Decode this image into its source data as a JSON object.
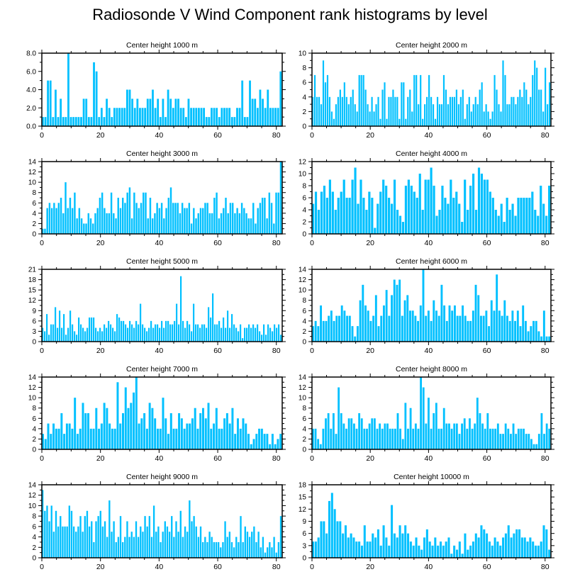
{
  "title": "Radiosonde V Wind Component rank histograms by level",
  "colors": {
    "bar": "#00c0ff",
    "axis": "#000000",
    "background": "#ffffff"
  },
  "chart_data": [
    {
      "type": "bar",
      "title": "Center height 1000 m",
      "xlim": [
        0,
        82
      ],
      "ylim": [
        0,
        8
      ],
      "xticks": [
        0,
        20,
        40,
        60,
        80
      ],
      "yticks": [
        0,
        2,
        4,
        6,
        8
      ],
      "ytick_labels": [
        "0.0",
        "2.0",
        "4.0",
        "6.0",
        "8.0"
      ],
      "values": [
        1,
        1,
        5,
        5,
        1,
        4,
        1,
        3,
        1,
        1,
        8,
        1,
        1,
        1,
        1,
        1,
        3,
        3,
        1,
        1,
        7,
        6,
        1,
        2,
        1,
        3,
        2,
        1,
        2,
        2,
        2,
        2,
        2,
        4,
        4,
        3,
        2,
        3,
        2,
        2,
        2,
        3,
        3,
        4,
        2,
        3,
        1,
        3,
        1,
        4,
        3,
        2,
        3,
        3,
        2,
        2,
        1,
        3,
        2,
        2,
        2,
        2,
        2,
        2,
        1,
        1,
        2,
        2,
        2,
        1,
        2,
        2,
        2,
        2,
        1,
        1,
        2,
        2,
        5,
        1,
        1,
        5,
        3,
        3,
        2,
        4,
        3,
        2,
        4,
        2,
        2,
        2,
        2,
        6
      ],
      "x_positions": "index"
    },
    {
      "type": "bar",
      "title": "Center height 2000 m",
      "xlim": [
        0,
        82
      ],
      "ylim": [
        0,
        10
      ],
      "xticks": [
        0,
        20,
        40,
        60,
        80
      ],
      "yticks": [
        0,
        2,
        4,
        6,
        8,
        10
      ],
      "values": [
        4,
        7,
        4,
        4,
        3,
        9,
        6,
        7,
        4,
        2,
        1,
        3,
        4,
        5,
        4,
        6,
        4,
        3,
        4,
        5,
        3,
        2,
        7,
        7,
        7,
        5,
        3,
        2,
        4,
        2,
        3,
        4,
        1,
        5,
        6,
        1,
        4,
        4,
        5,
        4,
        4,
        1,
        6,
        6,
        1,
        4,
        5,
        2,
        7,
        7,
        3,
        7,
        1,
        3,
        4,
        7,
        4,
        3,
        1,
        4,
        3,
        3,
        7,
        5,
        3,
        4,
        4,
        4,
        5,
        3,
        4,
        5,
        1,
        3,
        4,
        2,
        3,
        4,
        3,
        5,
        6,
        2,
        3,
        2,
        1,
        2,
        7,
        5,
        3,
        2,
        9,
        7,
        3,
        3,
        4,
        4,
        3,
        4,
        5,
        4,
        6,
        5,
        3,
        4,
        7,
        9,
        8,
        5,
        5,
        2,
        8,
        3,
        6
      ],
      "x_positions": "index"
    },
    {
      "type": "bar",
      "title": "Center height 3000 m",
      "xlim": [
        0,
        82
      ],
      "ylim": [
        0,
        14
      ],
      "xticks": [
        0,
        20,
        40,
        60,
        80
      ],
      "yticks": [
        0,
        2,
        4,
        6,
        8,
        10,
        12,
        14
      ],
      "values": [
        1,
        1,
        5,
        6,
        5,
        6,
        5,
        6,
        7,
        4,
        10,
        5,
        7,
        5,
        8,
        3,
        5,
        3,
        2,
        2,
        4,
        3,
        2,
        4,
        5,
        7,
        8,
        5,
        4,
        4,
        8,
        4,
        3,
        7,
        5,
        7,
        6,
        8,
        9,
        3,
        8,
        6,
        5,
        6,
        8,
        8,
        3,
        7,
        3,
        4,
        6,
        5,
        6,
        3,
        5,
        7,
        9,
        6,
        6,
        6,
        4,
        6,
        5,
        5,
        6,
        2,
        5,
        3,
        4,
        5,
        5,
        6,
        6,
        4,
        4,
        7,
        8,
        3,
        4,
        5,
        7,
        4,
        6,
        6,
        4,
        5,
        4,
        6,
        5,
        4,
        3,
        3,
        6,
        2,
        5,
        6,
        7,
        7,
        3,
        8,
        6,
        2,
        8,
        8,
        14
      ],
      "x_positions": "index"
    },
    {
      "type": "bar",
      "title": "Center height 4000 m",
      "xlim": [
        0,
        82
      ],
      "ylim": [
        0,
        12
      ],
      "xticks": [
        0,
        20,
        40,
        60,
        80
      ],
      "yticks": [
        0,
        2,
        4,
        6,
        8,
        10,
        12
      ],
      "values": [
        5,
        7,
        4,
        7,
        8,
        6,
        9,
        7,
        4,
        6,
        7,
        9,
        6,
        6,
        9,
        11,
        5,
        9,
        6,
        4,
        7,
        6,
        1,
        5,
        7,
        9,
        8,
        6,
        5,
        9,
        4,
        3,
        2,
        8,
        9,
        8,
        7,
        6,
        10,
        4,
        9,
        9,
        11,
        8,
        3,
        4,
        8,
        6,
        5,
        9,
        6,
        7,
        5,
        2,
        9,
        4,
        8,
        10,
        4,
        11,
        10,
        9,
        9,
        7,
        6,
        4,
        3,
        5,
        2,
        6,
        4,
        5,
        3,
        6,
        6,
        6,
        6,
        6,
        7,
        4,
        3,
        8,
        5,
        3,
        8
      ],
      "x_positions": "index"
    },
    {
      "type": "bar",
      "title": "Center height 5000 m",
      "xlim": [
        0,
        82
      ],
      "ylim": [
        0,
        21
      ],
      "xticks": [
        0,
        20,
        40,
        60,
        80
      ],
      "yticks": [
        0,
        3,
        6,
        9,
        12,
        15,
        18,
        21
      ],
      "values": [
        4,
        3,
        8,
        2,
        5,
        5,
        10,
        4,
        9,
        4,
        8,
        2,
        4,
        9,
        5,
        3,
        2,
        7,
        5,
        4,
        3,
        4,
        7,
        7,
        7,
        4,
        3,
        4,
        3,
        5,
        4,
        6,
        5,
        4,
        3,
        8,
        7,
        6,
        6,
        5,
        4,
        6,
        5,
        4,
        6,
        5,
        11,
        5,
        4,
        3,
        4,
        6,
        4,
        5,
        5,
        4,
        6,
        4,
        6,
        6,
        5,
        5,
        6,
        11,
        5,
        19,
        6,
        4,
        6,
        5,
        3,
        11,
        5,
        5,
        4,
        5,
        5,
        4,
        10,
        7,
        14,
        5,
        5,
        6,
        4,
        7,
        4,
        9,
        4,
        8,
        5,
        4,
        3,
        5,
        1,
        4,
        4,
        5,
        4,
        5,
        4,
        5,
        3,
        2,
        5,
        2,
        5,
        4,
        3,
        5,
        4,
        5,
        2
      ],
      "x_positions": "index"
    },
    {
      "type": "bar",
      "title": "Center height 6000 m",
      "xlim": [
        0,
        82
      ],
      "ylim": [
        0,
        14
      ],
      "xticks": [
        0,
        20,
        40,
        60,
        80
      ],
      "yticks": [
        0,
        2,
        4,
        6,
        8,
        10,
        12,
        14
      ],
      "values": [
        3,
        4,
        3,
        7,
        4,
        4,
        5,
        6,
        4,
        5,
        5,
        7,
        6,
        5,
        5,
        3,
        1,
        3,
        8,
        11,
        7,
        6,
        4,
        5,
        9,
        3,
        5,
        7,
        10,
        5,
        9,
        12,
        11,
        12,
        5,
        8,
        9,
        6,
        6,
        5,
        4,
        7,
        14,
        5,
        6,
        4,
        8,
        6,
        5,
        11,
        7,
        4,
        7,
        6,
        7,
        5,
        5,
        7,
        5,
        4,
        4,
        6,
        11,
        9,
        5,
        5,
        6,
        3,
        8,
        6,
        13,
        6,
        5,
        8,
        5,
        4,
        6,
        4,
        6,
        3,
        7,
        4,
        2,
        3,
        4,
        4,
        2,
        1,
        6,
        1,
        1
      ],
      "x_positions": "index"
    },
    {
      "type": "bar",
      "title": "Center height 7000 m",
      "xlim": [
        0,
        82
      ],
      "ylim": [
        0,
        14
      ],
      "xticks": [
        0,
        20,
        40,
        60,
        80
      ],
      "yticks": [
        0,
        2,
        4,
        6,
        8,
        10,
        12,
        14
      ],
      "values": [
        3,
        2,
        5,
        3,
        5,
        4,
        4,
        7,
        3,
        5,
        5,
        4,
        10,
        3,
        4,
        9,
        7,
        7,
        4,
        4,
        8,
        4,
        5,
        9,
        8,
        5,
        4,
        4,
        13,
        5,
        7,
        12,
        8,
        9,
        11,
        14,
        5,
        6,
        7,
        4,
        9,
        8,
        6,
        4,
        4,
        10,
        6,
        3,
        7,
        4,
        4,
        7,
        6,
        4,
        5,
        5,
        6,
        8,
        4,
        7,
        8,
        6,
        9,
        4,
        5,
        8,
        4,
        4,
        6,
        7,
        5,
        8,
        3,
        6,
        4,
        6,
        5,
        3,
        1,
        2,
        3,
        4,
        4,
        3,
        3,
        1,
        3,
        1,
        2,
        3
      ],
      "x_positions": "index"
    },
    {
      "type": "bar",
      "title": "Center height 8000 m",
      "xlim": [
        0,
        82
      ],
      "ylim": [
        0,
        14
      ],
      "xticks": [
        0,
        20,
        40,
        60,
        80
      ],
      "yticks": [
        0,
        2,
        4,
        6,
        8,
        10,
        12,
        14
      ],
      "values": [
        4,
        4,
        2,
        1,
        4,
        6,
        7,
        4,
        7,
        3,
        12,
        7,
        5,
        4,
        6,
        6,
        5,
        4,
        7,
        6,
        4,
        4,
        5,
        6,
        6,
        4,
        5,
        4,
        5,
        5,
        4,
        4,
        4,
        7,
        4,
        2,
        9,
        4,
        8,
        4,
        5,
        4,
        14,
        12,
        5,
        10,
        4,
        7,
        9,
        4,
        4,
        8,
        5,
        5,
        4,
        5,
        5,
        3,
        5,
        6,
        4,
        6,
        4,
        5,
        10,
        7,
        5,
        4,
        7,
        4,
        4,
        4,
        5,
        3,
        3,
        5,
        4,
        3,
        5,
        3,
        4,
        4,
        4,
        3,
        3,
        2,
        1,
        1,
        3,
        7,
        3,
        5,
        4
      ],
      "x_positions": "index"
    },
    {
      "type": "bar",
      "title": "Center height 9000 m",
      "xlim": [
        0,
        82
      ],
      "ylim": [
        0,
        14
      ],
      "xticks": [
        0,
        20,
        40,
        60,
        80
      ],
      "yticks": [
        0,
        2,
        4,
        6,
        8,
        10,
        12,
        14
      ],
      "values": [
        13,
        9,
        10,
        7,
        10,
        5,
        9,
        6,
        8,
        6,
        6,
        6,
        10,
        9,
        6,
        5,
        6,
        8,
        5,
        8,
        9,
        6,
        7,
        3,
        7,
        8,
        9,
        6,
        7,
        4,
        11,
        5,
        7,
        3,
        4,
        8,
        3,
        4,
        7,
        4,
        5,
        4,
        7,
        4,
        6,
        5,
        8,
        6,
        8,
        4,
        10,
        5,
        6,
        3,
        5,
        7,
        6,
        5,
        8,
        4,
        7,
        5,
        9,
        4,
        6,
        5,
        11,
        7,
        8,
        6,
        4,
        6,
        3,
        4,
        3,
        5,
        4,
        3,
        3,
        3,
        2,
        3,
        7,
        4,
        5,
        3,
        2,
        4,
        3,
        8,
        3,
        6,
        5,
        4,
        5,
        6,
        3,
        5,
        2,
        4,
        1,
        2,
        3,
        2,
        4,
        1,
        3,
        8
      ],
      "x_positions": "index"
    },
    {
      "type": "bar",
      "title": "Center height 10000 m",
      "xlim": [
        0,
        82
      ],
      "ylim": [
        0,
        18
      ],
      "xticks": [
        0,
        20,
        40,
        60,
        80
      ],
      "yticks": [
        0,
        3,
        6,
        9,
        12,
        15,
        18
      ],
      "values": [
        4,
        4,
        5,
        9,
        9,
        6,
        14,
        16,
        12,
        9,
        9,
        6,
        8,
        5,
        6,
        5,
        4,
        4,
        3,
        8,
        4,
        4,
        6,
        5,
        7,
        3,
        8,
        5,
        3,
        13,
        6,
        5,
        8,
        6,
        8,
        6,
        4,
        3,
        5,
        3,
        2,
        5,
        7,
        4,
        3,
        5,
        3,
        4,
        3,
        4,
        5,
        1,
        3,
        2,
        4,
        1,
        6,
        2,
        3,
        4,
        6,
        5,
        8,
        7,
        6,
        4,
        3,
        5,
        4,
        3,
        5,
        6,
        8,
        5,
        6,
        7,
        7,
        5,
        5,
        4,
        5,
        4,
        3,
        3,
        4,
        8,
        7,
        2
      ]
    }
  ]
}
